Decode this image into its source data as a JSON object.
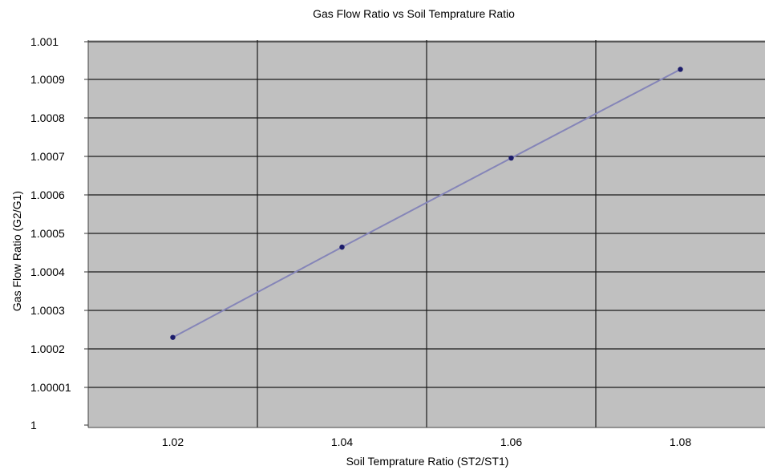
{
  "chart_data": {
    "type": "line",
    "title": "Gas Flow Ratio vs Soil Temprature Ratio",
    "xlabel": "Soil Temprature Ratio (ST2/ST1)",
    "ylabel": "Gas Flow Ratio (G2/G1)",
    "x_ticks": [
      "1.02",
      "1.04",
      "1.06",
      "1.08"
    ],
    "y_ticks": [
      "1",
      "1.00001",
      "1.0002",
      "1.0003",
      "1.0004",
      "1.0005",
      "1.0006",
      "1.0007",
      "1.0008",
      "1.0009",
      "1.001"
    ],
    "xlim": [
      1.01,
      1.09
    ],
    "ylim": [
      1.0,
      1.001
    ],
    "grid": true,
    "series": [
      {
        "x": [
          1.02,
          1.04,
          1.06,
          1.08
        ],
        "y": [
          1.00023,
          1.000465,
          1.000697,
          1.000928
        ]
      }
    ],
    "colors": {
      "plot_background": "#c0c0c0",
      "grid": "#1a1a1a",
      "line": "#8585b8",
      "marker": "#1c1c6b"
    }
  }
}
